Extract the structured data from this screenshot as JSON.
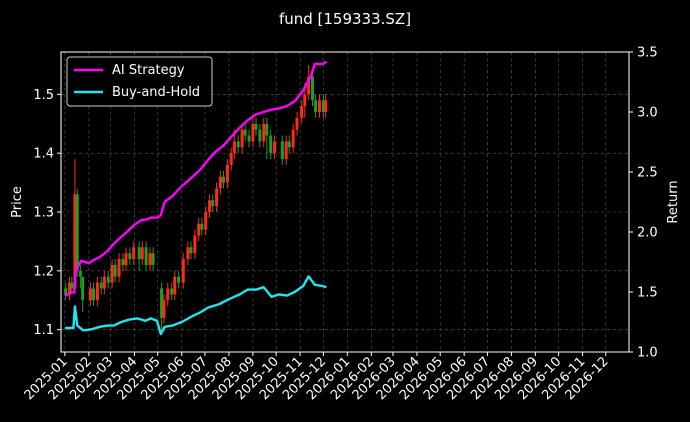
{
  "chart_data": {
    "type": "line",
    "title": "fund [159333.SZ]",
    "xlabel": "",
    "ylabel": "Price",
    "y2label": "Return",
    "grid": true,
    "legend_position": "top-left",
    "colors": {
      "background": "#000000",
      "up_candle": "#ff2a1a",
      "down_candle": "#1f9e1f",
      "ai_strategy": "#ff00ff",
      "buy_and_hold": "#22e5ee",
      "grid": "#5a5a5a",
      "axes": "#ffffff"
    },
    "x_range": [
      "2024-12-27",
      "2026-12-31"
    ],
    "x_ticks": [
      "2025-01",
      "2025-02",
      "2025-03",
      "2025-04",
      "2025-05",
      "2025-06",
      "2025-07",
      "2025-08",
      "2025-09",
      "2025-10",
      "2025-11",
      "2025-12",
      "2026-01",
      "2026-02",
      "2026-03",
      "2026-04",
      "2026-05",
      "2026-06",
      "2026-07",
      "2026-08",
      "2026-09",
      "2026-10",
      "2026-11",
      "2026-12"
    ],
    "y_left": {
      "range": [
        1.062,
        1.572
      ],
      "ticks": [
        "1.1",
        "1.2",
        "1.3",
        "1.4",
        "1.5"
      ]
    },
    "y_right": {
      "range": [
        1.0,
        3.5
      ],
      "ticks": [
        "1.0",
        "1.5",
        "2.0",
        "2.5",
        "3.0",
        "3.5"
      ]
    },
    "series": [
      {
        "name": "AI Strategy",
        "axis": "right",
        "points": [
          [
            "2025-01-01",
            1.47
          ],
          [
            "2025-01-08",
            1.49
          ],
          [
            "2025-01-13",
            1.5
          ],
          [
            "2025-01-15",
            1.68
          ],
          [
            "2025-01-22",
            1.76
          ],
          [
            "2025-02-01",
            1.74
          ],
          [
            "2025-02-08",
            1.77
          ],
          [
            "2025-02-15",
            1.79
          ],
          [
            "2025-02-25",
            1.84
          ],
          [
            "2025-03-05",
            1.9
          ],
          [
            "2025-03-15",
            1.96
          ],
          [
            "2025-03-22",
            2.0
          ],
          [
            "2025-04-01",
            2.06
          ],
          [
            "2025-04-10",
            2.1
          ],
          [
            "2025-04-15",
            2.1
          ],
          [
            "2025-04-22",
            2.12
          ],
          [
            "2025-05-01",
            2.12
          ],
          [
            "2025-05-05",
            2.14
          ],
          [
            "2025-05-10",
            2.25
          ],
          [
            "2025-05-20",
            2.3
          ],
          [
            "2025-06-01",
            2.38
          ],
          [
            "2025-06-15",
            2.46
          ],
          [
            "2025-06-25",
            2.52
          ],
          [
            "2025-07-05",
            2.6
          ],
          [
            "2025-07-15",
            2.67
          ],
          [
            "2025-07-25",
            2.72
          ],
          [
            "2025-08-05",
            2.8
          ],
          [
            "2025-08-15",
            2.87
          ],
          [
            "2025-08-25",
            2.93
          ],
          [
            "2025-09-05",
            2.98
          ],
          [
            "2025-09-15",
            3.0
          ],
          [
            "2025-09-25",
            3.02
          ],
          [
            "2025-10-05",
            3.03
          ],
          [
            "2025-10-15",
            3.05
          ],
          [
            "2025-10-25",
            3.09
          ],
          [
            "2025-11-05",
            3.18
          ],
          [
            "2025-11-15",
            3.3
          ],
          [
            "2025-11-20",
            3.4
          ],
          [
            "2025-11-30",
            3.4
          ],
          [
            "2025-12-05",
            3.42
          ]
        ]
      },
      {
        "name": "Buy-and-Hold",
        "axis": "right",
        "points": [
          [
            "2025-01-01",
            1.2
          ],
          [
            "2025-01-08",
            1.2
          ],
          [
            "2025-01-12",
            1.2
          ],
          [
            "2025-01-14",
            1.38
          ],
          [
            "2025-01-17",
            1.22
          ],
          [
            "2025-01-25",
            1.18
          ],
          [
            "2025-02-05",
            1.19
          ],
          [
            "2025-02-15",
            1.21
          ],
          [
            "2025-02-25",
            1.22
          ],
          [
            "2025-03-05",
            1.22
          ],
          [
            "2025-03-15",
            1.25
          ],
          [
            "2025-03-25",
            1.27
          ],
          [
            "2025-04-05",
            1.28
          ],
          [
            "2025-04-15",
            1.26
          ],
          [
            "2025-04-22",
            1.28
          ],
          [
            "2025-04-30",
            1.26
          ],
          [
            "2025-05-05",
            1.15
          ],
          [
            "2025-05-10",
            1.21
          ],
          [
            "2025-05-20",
            1.22
          ],
          [
            "2025-06-01",
            1.25
          ],
          [
            "2025-06-15",
            1.3
          ],
          [
            "2025-06-25",
            1.33
          ],
          [
            "2025-07-05",
            1.37
          ],
          [
            "2025-07-20",
            1.4
          ],
          [
            "2025-08-01",
            1.44
          ],
          [
            "2025-08-15",
            1.48
          ],
          [
            "2025-08-25",
            1.52
          ],
          [
            "2025-09-05",
            1.52
          ],
          [
            "2025-09-15",
            1.54
          ],
          [
            "2025-09-25",
            1.46
          ],
          [
            "2025-10-05",
            1.48
          ],
          [
            "2025-10-15",
            1.47
          ],
          [
            "2025-10-25",
            1.5
          ],
          [
            "2025-11-05",
            1.55
          ],
          [
            "2025-11-12",
            1.63
          ],
          [
            "2025-11-20",
            1.56
          ],
          [
            "2025-11-30",
            1.55
          ],
          [
            "2025-12-05",
            1.54
          ]
        ]
      }
    ],
    "candles": {
      "axis": "left",
      "points": [
        [
          "2025-01-02",
          1.17,
          1.16,
          1.18,
          1.15
        ],
        [
          "2025-01-07",
          1.16,
          1.18,
          1.19,
          1.15
        ],
        [
          "2025-01-10",
          1.18,
          1.17,
          1.19,
          1.16
        ],
        [
          "2025-01-14",
          1.17,
          1.33,
          1.39,
          1.16
        ],
        [
          "2025-01-17",
          1.33,
          1.2,
          1.34,
          1.19
        ],
        [
          "2025-01-21",
          1.2,
          1.19,
          1.21,
          1.17
        ],
        [
          "2025-01-24",
          1.19,
          1.15,
          1.19,
          1.13
        ],
        [
          "2025-02-03",
          1.15,
          1.17,
          1.18,
          1.14
        ],
        [
          "2025-02-07",
          1.17,
          1.15,
          1.18,
          1.14
        ],
        [
          "2025-02-12",
          1.15,
          1.18,
          1.19,
          1.14
        ],
        [
          "2025-02-17",
          1.18,
          1.17,
          1.19,
          1.16
        ],
        [
          "2025-02-21",
          1.17,
          1.19,
          1.2,
          1.16
        ],
        [
          "2025-02-26",
          1.19,
          1.18,
          1.2,
          1.17
        ],
        [
          "2025-03-03",
          1.18,
          1.21,
          1.22,
          1.17
        ],
        [
          "2025-03-07",
          1.21,
          1.19,
          1.22,
          1.18
        ],
        [
          "2025-03-12",
          1.19,
          1.22,
          1.23,
          1.18
        ],
        [
          "2025-03-17",
          1.22,
          1.21,
          1.23,
          1.2
        ],
        [
          "2025-03-21",
          1.21,
          1.23,
          1.24,
          1.2
        ],
        [
          "2025-03-26",
          1.23,
          1.22,
          1.24,
          1.21
        ],
        [
          "2025-03-31",
          1.22,
          1.24,
          1.25,
          1.21
        ],
        [
          "2025-04-07",
          1.24,
          1.22,
          1.25,
          1.2
        ],
        [
          "2025-04-11",
          1.22,
          1.24,
          1.25,
          1.21
        ],
        [
          "2025-04-16",
          1.24,
          1.21,
          1.25,
          1.2
        ],
        [
          "2025-04-21",
          1.21,
          1.23,
          1.24,
          1.2
        ],
        [
          "2025-04-25",
          1.23,
          1.21,
          1.24,
          1.2
        ],
        [
          "2025-05-06",
          1.17,
          1.12,
          1.18,
          1.1
        ],
        [
          "2025-05-09",
          1.12,
          1.15,
          1.16,
          1.11
        ],
        [
          "2025-05-14",
          1.15,
          1.17,
          1.18,
          1.14
        ],
        [
          "2025-05-19",
          1.17,
          1.16,
          1.18,
          1.15
        ],
        [
          "2025-05-23",
          1.16,
          1.19,
          1.2,
          1.15
        ],
        [
          "2025-05-28",
          1.19,
          1.18,
          1.2,
          1.17
        ],
        [
          "2025-06-03",
          1.18,
          1.22,
          1.23,
          1.17
        ],
        [
          "2025-06-09",
          1.22,
          1.24,
          1.25,
          1.21
        ],
        [
          "2025-06-13",
          1.24,
          1.23,
          1.25,
          1.22
        ],
        [
          "2025-06-18",
          1.23,
          1.26,
          1.27,
          1.22
        ],
        [
          "2025-06-23",
          1.26,
          1.28,
          1.29,
          1.25
        ],
        [
          "2025-06-27",
          1.28,
          1.27,
          1.29,
          1.26
        ],
        [
          "2025-07-02",
          1.27,
          1.3,
          1.31,
          1.26
        ],
        [
          "2025-07-07",
          1.3,
          1.32,
          1.33,
          1.29
        ],
        [
          "2025-07-11",
          1.32,
          1.31,
          1.33,
          1.3
        ],
        [
          "2025-07-16",
          1.31,
          1.34,
          1.35,
          1.3
        ],
        [
          "2025-07-21",
          1.34,
          1.36,
          1.37,
          1.33
        ],
        [
          "2025-07-25",
          1.36,
          1.35,
          1.37,
          1.34
        ],
        [
          "2025-07-30",
          1.35,
          1.38,
          1.39,
          1.34
        ],
        [
          "2025-08-04",
          1.38,
          1.4,
          1.41,
          1.37
        ],
        [
          "2025-08-08",
          1.4,
          1.42,
          1.44,
          1.39
        ],
        [
          "2025-08-13",
          1.42,
          1.41,
          1.43,
          1.4
        ],
        [
          "2025-08-18",
          1.41,
          1.44,
          1.45,
          1.4
        ],
        [
          "2025-08-22",
          1.44,
          1.43,
          1.45,
          1.42
        ],
        [
          "2025-08-27",
          1.43,
          1.42,
          1.44,
          1.41
        ],
        [
          "2025-09-01",
          1.42,
          1.45,
          1.46,
          1.41
        ],
        [
          "2025-09-05",
          1.45,
          1.44,
          1.46,
          1.43
        ],
        [
          "2025-09-10",
          1.44,
          1.42,
          1.45,
          1.41
        ],
        [
          "2025-09-15",
          1.42,
          1.45,
          1.46,
          1.41
        ],
        [
          "2025-09-19",
          1.45,
          1.43,
          1.46,
          1.39
        ],
        [
          "2025-09-24",
          1.43,
          1.4,
          1.44,
          1.39
        ],
        [
          "2025-09-29",
          1.4,
          1.42,
          1.43,
          1.39
        ],
        [
          "2025-10-09",
          1.42,
          1.39,
          1.43,
          1.38
        ],
        [
          "2025-10-14",
          1.39,
          1.42,
          1.43,
          1.38
        ],
        [
          "2025-10-18",
          1.42,
          1.41,
          1.43,
          1.4
        ],
        [
          "2025-10-23",
          1.41,
          1.44,
          1.45,
          1.4
        ],
        [
          "2025-10-28",
          1.44,
          1.46,
          1.47,
          1.43
        ],
        [
          "2025-11-03",
          1.46,
          1.48,
          1.49,
          1.45
        ],
        [
          "2025-11-07",
          1.48,
          1.5,
          1.52,
          1.46
        ],
        [
          "2025-11-12",
          1.5,
          1.53,
          1.55,
          1.49
        ],
        [
          "2025-11-17",
          1.53,
          1.49,
          1.54,
          1.48
        ],
        [
          "2025-11-21",
          1.49,
          1.47,
          1.5,
          1.46
        ],
        [
          "2025-11-26",
          1.47,
          1.49,
          1.5,
          1.46
        ],
        [
          "2025-12-01",
          1.49,
          1.47,
          1.5,
          1.46
        ],
        [
          "2025-12-04",
          1.47,
          1.49,
          1.5,
          1.46
        ]
      ]
    }
  }
}
